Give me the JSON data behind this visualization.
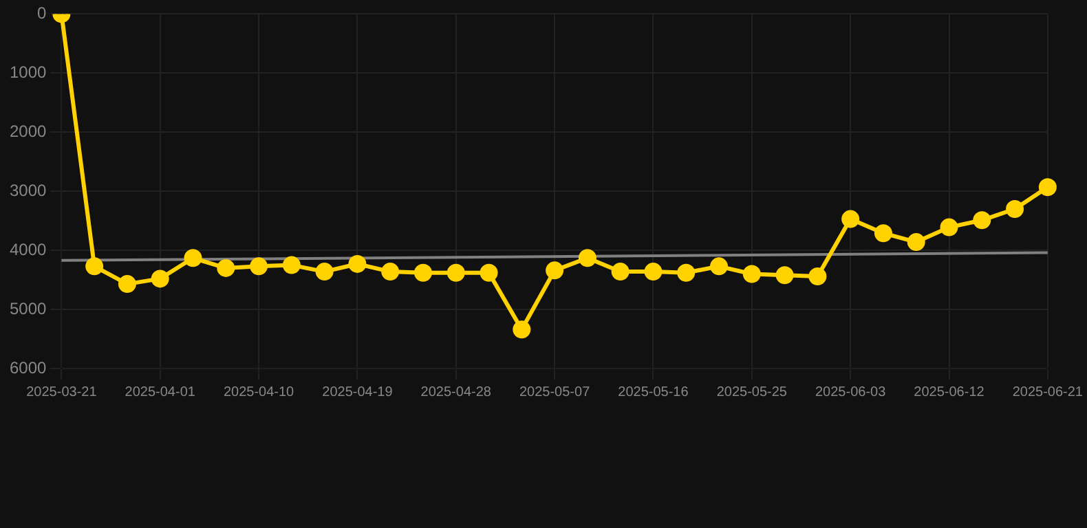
{
  "chart_data": {
    "type": "line",
    "categories": [
      "2025-03-21",
      null,
      null,
      "2025-04-01",
      null,
      null,
      "2025-04-10",
      null,
      null,
      "2025-04-19",
      null,
      null,
      "2025-04-28",
      null,
      null,
      "2025-05-07",
      null,
      null,
      "2025-05-16",
      null,
      null,
      "2025-05-25",
      null,
      null,
      "2025-06-03",
      null,
      null,
      "2025-06-12",
      null,
      null,
      "2025-06-21"
    ],
    "series": [
      {
        "color": "#ffd200",
        "marker": "circle",
        "values": [
          0,
          4270,
          4570,
          4480,
          4130,
          4300,
          4270,
          4250,
          4360,
          4230,
          4360,
          4380,
          4380,
          4380,
          5340,
          4340,
          4130,
          4360,
          4360,
          4380,
          4270,
          4400,
          4420,
          4440,
          3470,
          3710,
          3860,
          3610,
          3490,
          3300,
          2930
        ]
      },
      {
        "type": "line",
        "color": "#808080",
        "marker": "none",
        "values": [
          4170,
          null,
          null,
          null,
          null,
          null,
          null,
          null,
          null,
          null,
          null,
          null,
          null,
          null,
          null,
          null,
          null,
          null,
          null,
          null,
          null,
          null,
          null,
          null,
          null,
          null,
          null,
          null,
          null,
          null,
          4040
        ]
      }
    ],
    "ylim": [
      6000,
      0
    ],
    "yticks": [
      0,
      1000,
      2000,
      3000,
      4000,
      5000,
      6000
    ],
    "grid": true,
    "legend": false
  }
}
